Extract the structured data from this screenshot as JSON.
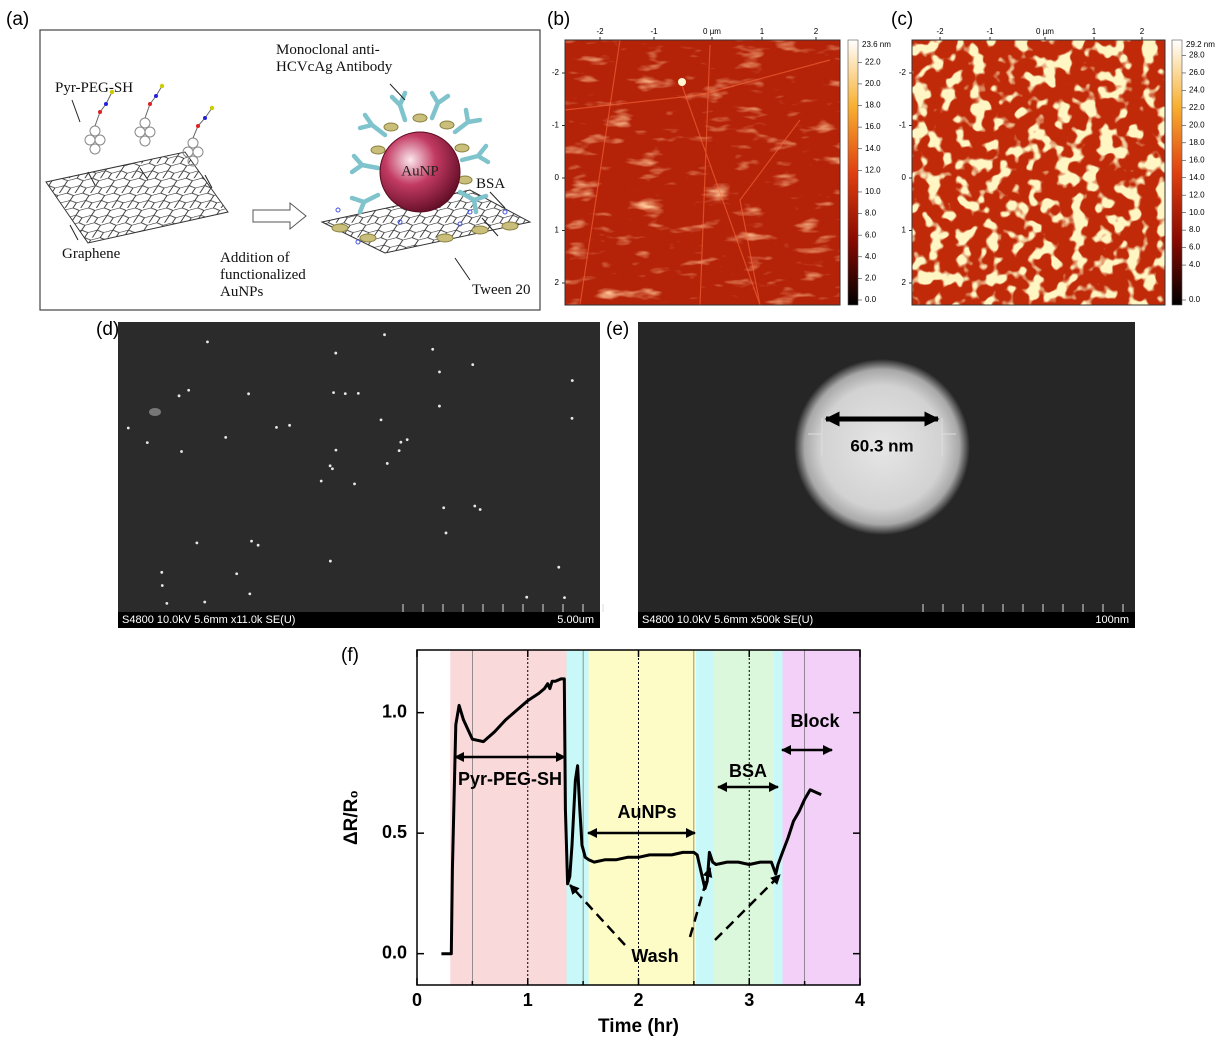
{
  "panel_labels": [
    "(a)",
    "(b)",
    "(c)",
    "(d)",
    "(e)",
    "(f)"
  ],
  "schematic": {
    "linker": "Pyr-PEG-SH",
    "antibody": "Monoclonal anti-HCVcAg Antibody",
    "particle": "AuNP",
    "blocker": "BSA",
    "substrate": "Graphene",
    "step": "Addition of functionalized AuNPs",
    "surfactant": "Tween 20"
  },
  "afm": [
    {
      "scale_max": "23.6 nm",
      "scale_ticks": [
        "0.0",
        "2.0",
        "4.0",
        "6.0",
        "8.0",
        "10.0",
        "12.0",
        "14.0",
        "16.0",
        "18.0",
        "20.0",
        "22.0"
      ],
      "x_ticks": [
        "-2",
        "-1",
        "0 µm",
        "1",
        "2"
      ],
      "y_ticks": [
        "-2",
        "-1",
        "0",
        "1",
        "2"
      ]
    },
    {
      "scale_max": "29.2 nm",
      "scale_ticks": [
        "0.0",
        "4.0",
        "6.0",
        "8.0",
        "10.0",
        "12.0",
        "14.0",
        "16.0",
        "18.0",
        "20.0",
        "22.0",
        "24.0",
        "26.0",
        "28.0"
      ],
      "x_ticks": [
        "-2",
        "-1",
        "0 µm",
        "1",
        "2"
      ],
      "y_ticks": [
        "-2",
        "-1",
        "0",
        "1",
        "2"
      ]
    }
  ],
  "sem": [
    {
      "info": "S4800 10.0kV 5.6mm x11.0k SE(U)",
      "scale": "5.00um"
    },
    {
      "info": "S4800 10.0kV 5.6mm x500k SE(U)",
      "scale": "100nm",
      "measurement": "60.3 nm"
    }
  ],
  "chart_data": {
    "type": "line",
    "xlabel": "Time (hr)",
    "ylabel": "ΔR/R₀",
    "xlim": [
      0,
      4
    ],
    "ylim": [
      -0.13,
      1.26
    ],
    "xticks": [
      0,
      1,
      2,
      3,
      4
    ],
    "xminor": [
      0.5,
      1.5,
      2.5,
      3.5
    ],
    "yticks": [
      {
        "value": 0,
        "label": "0.0"
      },
      {
        "value": 0.5,
        "label": "0.5"
      },
      {
        "value": 1,
        "label": "1.0"
      }
    ],
    "grid": true,
    "regions": [
      {
        "start": 0.3,
        "end": 1.35,
        "color": "#f9d9da"
      },
      {
        "start": 1.35,
        "end": 1.55,
        "color": "#c8f8f8"
      },
      {
        "start": 1.55,
        "end": 2.52,
        "color": "#fdfbc6"
      },
      {
        "start": 2.52,
        "end": 2.68,
        "color": "#c8f8f8"
      },
      {
        "start": 2.68,
        "end": 3.22,
        "color": "#dcf8dc"
      },
      {
        "start": 3.22,
        "end": 3.3,
        "color": "#c8f8f8"
      },
      {
        "start": 3.3,
        "end": 4,
        "color": "#f2d0f8"
      }
    ],
    "annotations": [
      "Pyr-PEG-SH",
      "AuNPs",
      "BSA",
      "Block",
      "Wash"
    ],
    "series": [
      {
        "name": "ΔR/R₀",
        "color": "#000000",
        "x": [
          0.22,
          0.31,
          0.32,
          0.35,
          0.38,
          0.42,
          0.5,
          0.6,
          0.7,
          0.8,
          0.9,
          1.0,
          1.1,
          1.15,
          1.18,
          1.2,
          1.22,
          1.25,
          1.3,
          1.33,
          1.34,
          1.36,
          1.38,
          1.4,
          1.43,
          1.45,
          1.47,
          1.49,
          1.52,
          1.55,
          1.6,
          1.7,
          1.8,
          1.9,
          2.0,
          2.1,
          2.2,
          2.3,
          2.4,
          2.5,
          2.53,
          2.56,
          2.6,
          2.62,
          2.64,
          2.67,
          2.7,
          2.8,
          2.9,
          3.0,
          3.1,
          3.2,
          3.24,
          3.26,
          3.3,
          3.35,
          3.4,
          3.45,
          3.5,
          3.55,
          3.6,
          3.65
        ],
        "values": [
          0.0,
          0.0,
          0.35,
          0.95,
          1.03,
          0.97,
          0.89,
          0.88,
          0.92,
          0.97,
          1.01,
          1.05,
          1.08,
          1.1,
          1.12,
          1.1,
          1.13,
          1.13,
          1.14,
          1.14,
          0.6,
          0.29,
          0.32,
          0.45,
          0.72,
          0.78,
          0.6,
          0.45,
          0.4,
          0.39,
          0.38,
          0.39,
          0.39,
          0.4,
          0.4,
          0.41,
          0.41,
          0.41,
          0.42,
          0.42,
          0.41,
          0.35,
          0.27,
          0.3,
          0.42,
          0.38,
          0.37,
          0.38,
          0.38,
          0.37,
          0.38,
          0.38,
          0.33,
          0.37,
          0.42,
          0.48,
          0.55,
          0.59,
          0.64,
          0.68,
          0.67,
          0.66
        ]
      }
    ]
  }
}
